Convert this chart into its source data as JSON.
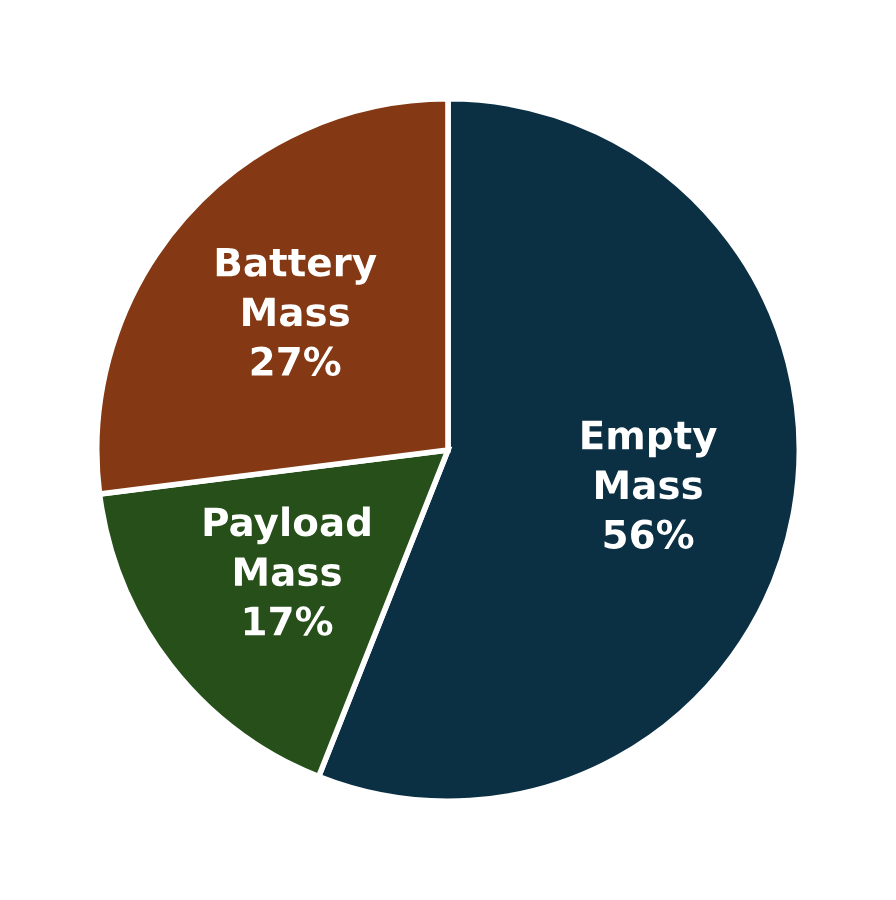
{
  "chart_data": {
    "type": "pie",
    "categories": [
      "Empty Mass",
      "Payload Mass",
      "Battery Mass"
    ],
    "values": [
      56,
      17,
      27
    ],
    "value_labels": [
      "56%",
      "17%",
      "27%"
    ],
    "colors": [
      "#0b3044",
      "#264f1a",
      "#843813"
    ]
  }
}
